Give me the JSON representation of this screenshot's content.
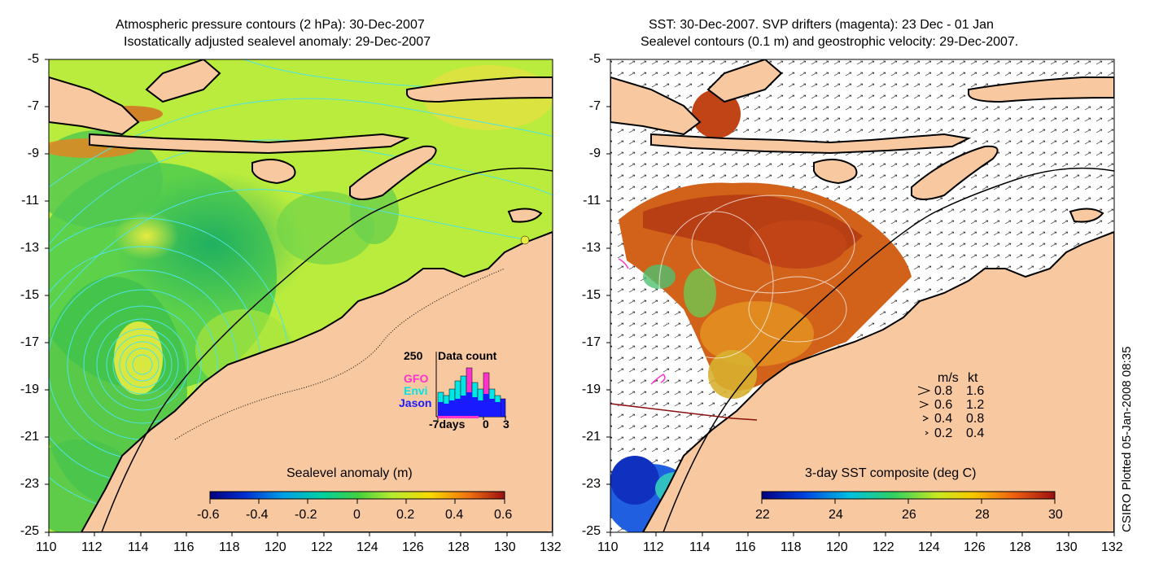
{
  "left_panel": {
    "title_line1": "Atmospheric pressure contours (2 hPa): 30-Dec-2007",
    "title_line2": "Isostatically adjusted sealevel anomaly: 29-Dec-2007",
    "colorbar_label": "Sealevel anomaly (m)",
    "colorbar_ticks": [
      "-0.6",
      "-0.4",
      "-0.2",
      "0",
      "0.2",
      "0.4",
      "0.6"
    ],
    "inset": {
      "max_label": "250",
      "title": "Data count",
      "satellites": [
        {
          "name": "GFO",
          "color": "#ff33cc"
        },
        {
          "name": "Envi",
          "color": "#00e5e5"
        },
        {
          "name": "Jason",
          "color": "#1a1aff"
        }
      ],
      "x_labels": [
        "-7days",
        "0",
        "3"
      ]
    }
  },
  "right_panel": {
    "title_line1": "SST: 30-Dec-2007. SVP drifters (magenta): 23 Dec - 01 Jan",
    "title_line2": "Sealevel contours (0.1 m) and geostrophic velocity: 29-Dec-2007.",
    "colorbar_label": "3-day SST composite (deg C)",
    "colorbar_ticks": [
      "22",
      "24",
      "26",
      "28",
      "30"
    ],
    "velocity_legend": {
      "header_ms": "m/s",
      "header_kt": "kt",
      "rows": [
        {
          "ms": "0.8",
          "kt": "1.6"
        },
        {
          "ms": "0.6",
          "kt": "1.2"
        },
        {
          "ms": "0.4",
          "kt": "0.8"
        },
        {
          "ms": "0.2",
          "kt": "0.4"
        }
      ]
    }
  },
  "axes": {
    "lat_ticks": [
      "-5",
      "-7",
      "-9",
      "-11",
      "-13",
      "-15",
      "-17",
      "-19",
      "-21",
      "-23",
      "-25"
    ],
    "lon_ticks": [
      "110",
      "112",
      "114",
      "116",
      "118",
      "120",
      "122",
      "124",
      "126",
      "128",
      "130",
      "132"
    ]
  },
  "credit": "CSIRO Plotted 05-Jan-2008 08:35",
  "colors": {
    "land": "#f8c9a0",
    "coast": "#000000",
    "pressure_contour": "#4fe3e3",
    "anomaly_base": "#b9ec3c",
    "anomaly_low": "#2ec24f",
    "sst_warm": "#c8541a",
    "sst_mid": "#e68a1e",
    "drifter": "#ff33cc"
  }
}
